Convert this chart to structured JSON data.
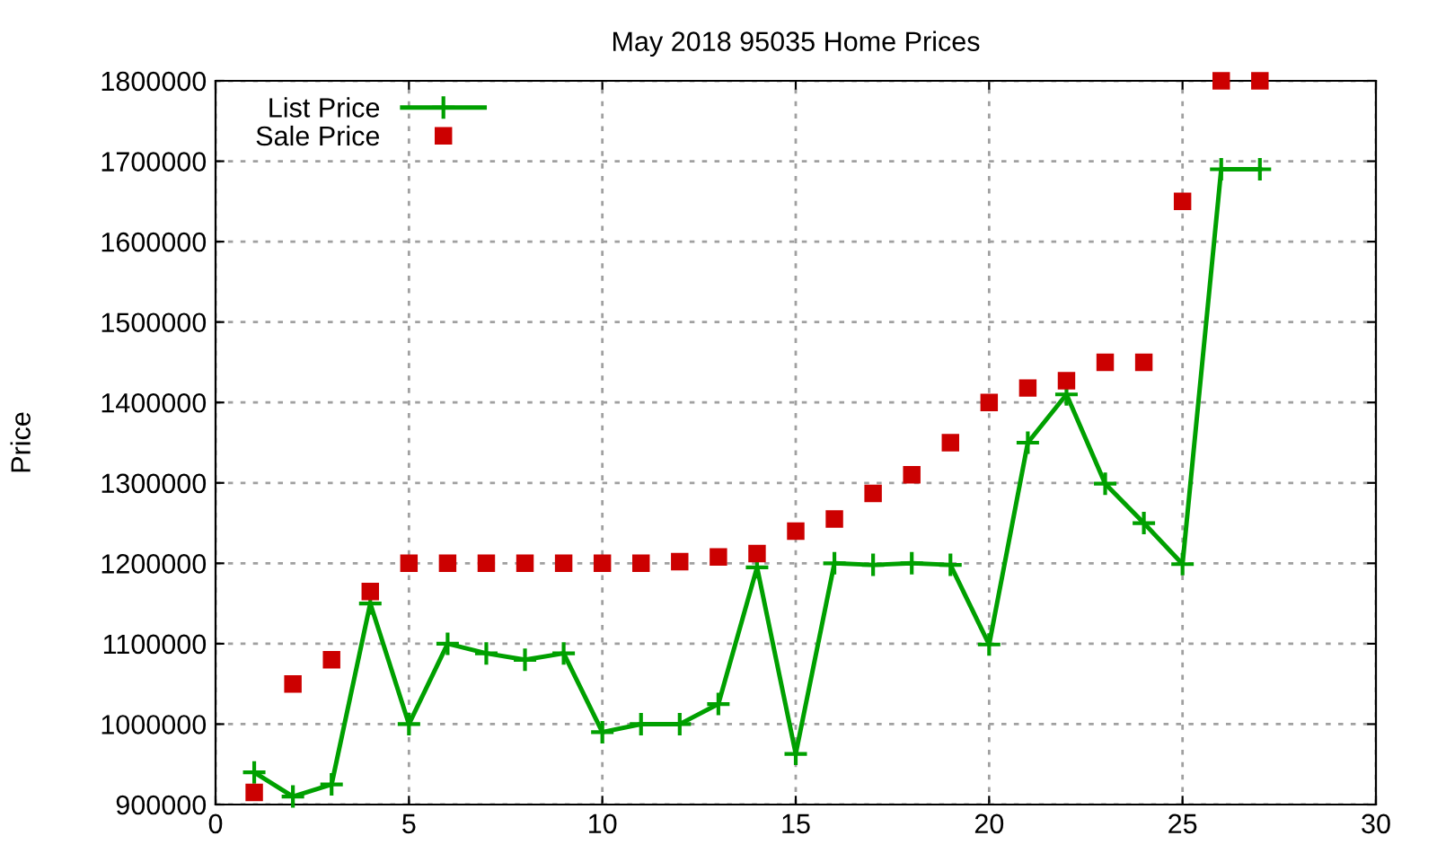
{
  "chart_data": {
    "type": "line",
    "title": "May 2018 95035 Home Prices",
    "ylabel": "Price",
    "x": [
      1,
      2,
      3,
      4,
      5,
      6,
      7,
      8,
      9,
      10,
      11,
      12,
      13,
      14,
      15,
      16,
      17,
      18,
      19,
      20,
      21,
      22,
      23,
      24,
      25,
      26,
      27
    ],
    "series": [
      {
        "name": "List Price",
        "color": "#00a000",
        "marker": "cross",
        "values": [
          940000,
          910000,
          925000,
          1150000,
          1000000,
          1100000,
          1088000,
          1080000,
          1088000,
          990000,
          1000000,
          1000000,
          1025000,
          1195000,
          963000,
          1200000,
          1198000,
          1200000,
          1198000,
          1099000,
          1350000,
          1410000,
          1299000,
          1250000,
          1199000,
          1690000,
          1690000
        ]
      },
      {
        "name": "Sale Price",
        "type": "scatter",
        "color": "#cc0000",
        "marker": "square",
        "values": [
          915000,
          1050000,
          1080000,
          1165000,
          1200000,
          1200000,
          1200000,
          1200000,
          1200000,
          1200000,
          1200000,
          1202000,
          1208000,
          1212000,
          1240000,
          1255000,
          1287000,
          1310000,
          1350000,
          1400000,
          1418000,
          1427000,
          1450000,
          1450000,
          1650000,
          1800000,
          1800000
        ]
      }
    ],
    "xlim": [
      0,
      30
    ],
    "xticks": [
      0,
      5,
      10,
      15,
      20,
      25,
      30
    ],
    "ylim": [
      900000,
      1800000
    ],
    "yticks": [
      900000,
      1000000,
      1100000,
      1200000,
      1300000,
      1400000,
      1500000,
      1600000,
      1700000,
      1800000
    ],
    "grid": true,
    "legend": "top left"
  }
}
